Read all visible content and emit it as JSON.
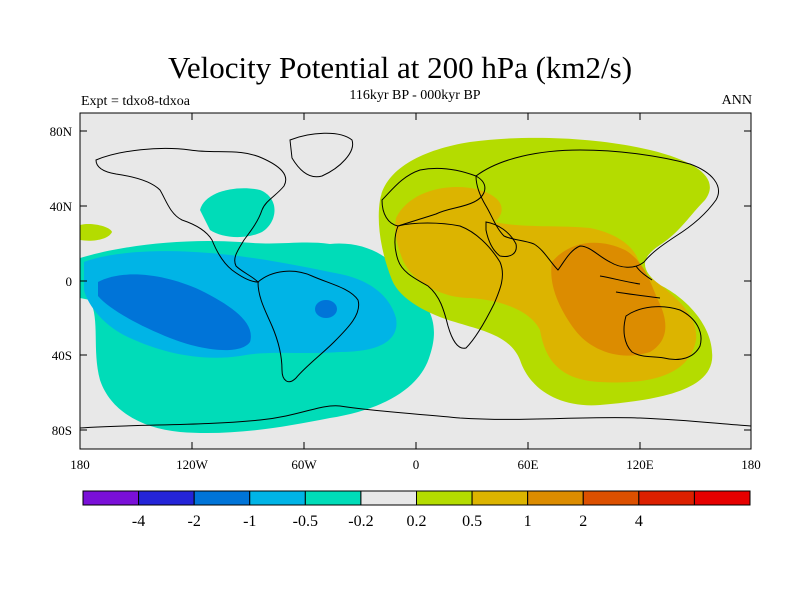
{
  "header": {
    "title": "Velocity Potential at 200 hPa (km2/s)",
    "subtitle": "116kyr BP - 000kyr BP",
    "left_label": "Expt = tdxo8-tdxoa",
    "right_label": "ANN"
  },
  "map": {
    "lat_ticks": [
      "80N",
      "40N",
      "0",
      "40S",
      "80S"
    ],
    "lon_ticks": [
      "180",
      "120W",
      "60W",
      "0",
      "60E",
      "120E",
      "180"
    ],
    "background_color": "#e8e8e8"
  },
  "colorbar": {
    "colors": [
      "#7a10d8",
      "#2424d8",
      "#0074d8",
      "#00b4e6",
      "#00dcb8",
      "#e8e8e8",
      "#b4dc00",
      "#dcb400",
      "#dc8c00",
      "#dc5000",
      "#dc2000",
      "#e60000"
    ],
    "labels": [
      "-4",
      "-2",
      "-1",
      "-0.5",
      "-0.2",
      "0.2",
      "0.5",
      "1",
      "2",
      "4"
    ]
  }
}
